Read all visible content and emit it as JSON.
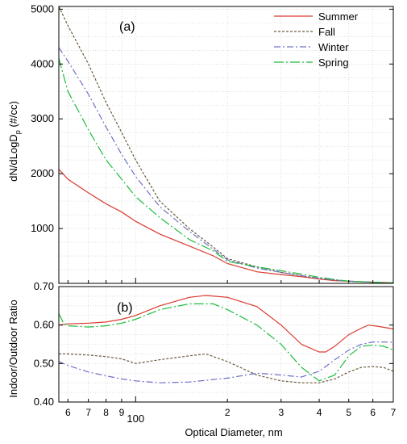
{
  "figure": {
    "xlabel": "Optical Diameter, nm",
    "x_tick_labels": [
      "6",
      "7",
      "8",
      "9",
      "100",
      "2",
      "3",
      "4",
      "5",
      "6",
      "7"
    ]
  },
  "chart_data": [
    {
      "type": "line",
      "panel_label": "(a)",
      "xlabel": "Optical Diameter, nm",
      "ylabel_parts": [
        "dN/dLogD",
        "p",
        " (#/cc)"
      ],
      "x_scale": "log",
      "xlim": [
        56,
        700
      ],
      "ylim": [
        0,
        5050
      ],
      "y_ticks": [
        1000,
        2000,
        3000,
        4000,
        5000
      ],
      "grid": true,
      "legend": "top-right",
      "series": [
        {
          "name": "Summer",
          "color": "#d93a2e",
          "dash": "solid",
          "x": [
            56,
            60,
            70,
            80,
            90,
            100,
            120,
            150,
            180,
            200,
            250,
            300,
            350,
            400,
            450,
            500,
            600,
            700
          ],
          "y": [
            2080,
            1900,
            1650,
            1450,
            1300,
            1130,
            900,
            680,
            500,
            360,
            210,
            160,
            120,
            80,
            50,
            40,
            20,
            10
          ]
        },
        {
          "name": "Fall",
          "color": "#6b5a3a",
          "dash": "3,2",
          "x": [
            56,
            60,
            70,
            80,
            90,
            100,
            120,
            150,
            180,
            200,
            250,
            300,
            350,
            400,
            450,
            500,
            600,
            700
          ],
          "y": [
            5050,
            4700,
            4000,
            3300,
            2750,
            2250,
            1500,
            1000,
            660,
            450,
            300,
            200,
            140,
            90,
            60,
            40,
            20,
            10
          ]
        },
        {
          "name": "Winter",
          "color": "#7070c8",
          "dash": "8,3,2,3",
          "x": [
            56,
            60,
            70,
            80,
            90,
            100,
            120,
            150,
            180,
            200,
            250,
            300,
            350,
            400,
            450,
            500,
            600,
            700
          ],
          "y": [
            4300,
            4050,
            3450,
            2850,
            2350,
            1950,
            1400,
            950,
            620,
            430,
            280,
            200,
            140,
            90,
            60,
            40,
            20,
            10
          ]
        },
        {
          "name": "Spring",
          "color": "#1cbc3c",
          "dash": "12,3,2,3",
          "x": [
            56,
            60,
            70,
            80,
            90,
            100,
            120,
            150,
            180,
            200,
            250,
            300,
            350,
            400,
            450,
            500,
            600,
            700
          ],
          "y": [
            4100,
            3500,
            2800,
            2250,
            1900,
            1580,
            1200,
            800,
            590,
            400,
            300,
            230,
            170,
            110,
            70,
            40,
            20,
            10
          ]
        }
      ]
    },
    {
      "type": "line",
      "panel_label": "(b)",
      "xlabel": "Optical Diameter, nm",
      "ylabel": "Indoor/Outdoor Ratio",
      "x_scale": "log",
      "xlim": [
        56,
        700
      ],
      "ylim": [
        0.4,
        0.7
      ],
      "y_ticks": [
        0.4,
        0.5,
        0.6,
        0.7
      ],
      "y_tick_labels": [
        "0.40",
        "0.50",
        "0.60",
        "0.70"
      ],
      "grid": true,
      "series": [
        {
          "name": "Summer",
          "color": "#d93a2e",
          "dash": "solid",
          "x": [
            56,
            60,
            70,
            80,
            90,
            100,
            120,
            150,
            170,
            200,
            250,
            300,
            350,
            400,
            420,
            450,
            500,
            550,
            580,
            620,
            700
          ],
          "y": [
            0.6,
            0.603,
            0.605,
            0.608,
            0.615,
            0.625,
            0.65,
            0.672,
            0.677,
            0.672,
            0.648,
            0.6,
            0.55,
            0.53,
            0.53,
            0.545,
            0.575,
            0.592,
            0.6,
            0.597,
            0.59
          ]
        },
        {
          "name": "Fall",
          "color": "#6b5a3a",
          "dash": "3,2",
          "x": [
            56,
            60,
            70,
            80,
            90,
            100,
            120,
            150,
            170,
            200,
            250,
            300,
            350,
            400,
            450,
            500,
            550,
            600,
            650,
            700
          ],
          "y": [
            0.525,
            0.525,
            0.522,
            0.518,
            0.512,
            0.5,
            0.51,
            0.52,
            0.525,
            0.505,
            0.47,
            0.455,
            0.45,
            0.45,
            0.46,
            0.478,
            0.49,
            0.492,
            0.49,
            0.48
          ]
        },
        {
          "name": "Winter",
          "color": "#7070c8",
          "dash": "8,3,2,3",
          "x": [
            56,
            60,
            70,
            80,
            90,
            100,
            120,
            150,
            200,
            250,
            300,
            350,
            400,
            450,
            500,
            550,
            600,
            650,
            700
          ],
          "y": [
            0.505,
            0.495,
            0.478,
            0.468,
            0.46,
            0.455,
            0.45,
            0.452,
            0.462,
            0.475,
            0.47,
            0.465,
            0.48,
            0.51,
            0.535,
            0.55,
            0.556,
            0.556,
            0.555
          ]
        },
        {
          "name": "Spring",
          "color": "#1cbc3c",
          "dash": "12,3,2,3",
          "x": [
            56,
            58,
            60,
            70,
            80,
            90,
            100,
            120,
            150,
            180,
            200,
            250,
            300,
            350,
            400,
            450,
            500,
            550,
            600,
            650,
            700
          ],
          "y": [
            0.63,
            0.605,
            0.598,
            0.595,
            0.598,
            0.605,
            0.615,
            0.64,
            0.655,
            0.655,
            0.64,
            0.6,
            0.55,
            0.49,
            0.455,
            0.47,
            0.52,
            0.545,
            0.548,
            0.545,
            0.535
          ]
        }
      ]
    }
  ]
}
